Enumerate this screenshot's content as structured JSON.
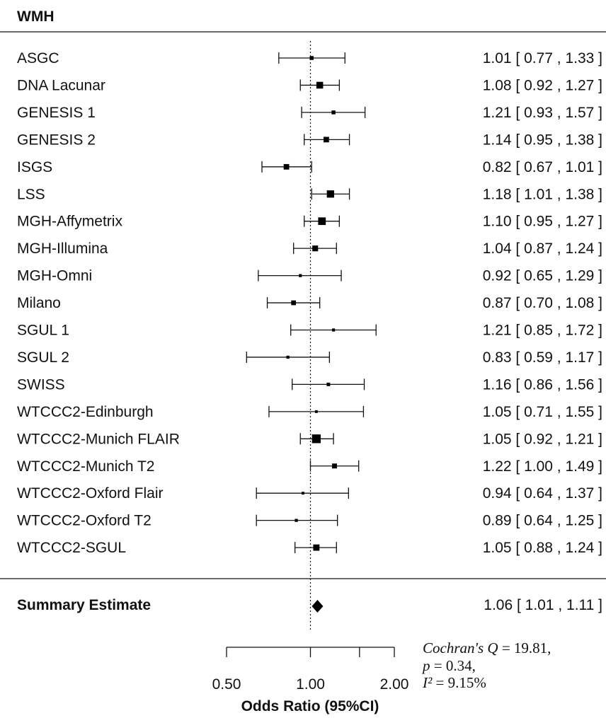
{
  "chart_data": {
    "type": "forest",
    "title": "WMH",
    "xlabel": "Odds Ratio (95%CI)",
    "x_scale": "log",
    "xlim": [
      0.5,
      2.0
    ],
    "xticks": [
      0.5,
      1.0,
      1.5,
      2.0
    ],
    "xtick_labels": [
      "0.50",
      "1.00",
      "",
      "2.00"
    ],
    "reference_line": 1.0,
    "studies": [
      {
        "label": "ASGC",
        "or": 1.01,
        "lower": 0.77,
        "upper": 1.33,
        "ci_text": "1.01 [ 0.77 , 1.33 ]",
        "weight": 1
      },
      {
        "label": "DNA Lacunar",
        "or": 1.08,
        "lower": 0.92,
        "upper": 1.27,
        "ci_text": "1.08 [ 0.92 , 1.27 ]",
        "weight": 3
      },
      {
        "label": "GENESIS 1",
        "or": 1.21,
        "lower": 0.93,
        "upper": 1.57,
        "ci_text": "1.21 [ 0.93 , 1.57 ]",
        "weight": 1
      },
      {
        "label": "GENESIS 2",
        "or": 1.14,
        "lower": 0.95,
        "upper": 1.38,
        "ci_text": "1.14 [ 0.95 , 1.38 ]",
        "weight": 2
      },
      {
        "label": "ISGS",
        "or": 0.82,
        "lower": 0.67,
        "upper": 1.01,
        "ci_text": "0.82 [ 0.67 , 1.01 ]",
        "weight": 2
      },
      {
        "label": "LSS",
        "or": 1.18,
        "lower": 1.01,
        "upper": 1.38,
        "ci_text": "1.18 [ 1.01 , 1.38 ]",
        "weight": 3.5
      },
      {
        "label": "MGH-Affymetrix",
        "or": 1.1,
        "lower": 0.95,
        "upper": 1.27,
        "ci_text": "1.10 [ 0.95 , 1.27 ]",
        "weight": 3.8
      },
      {
        "label": "MGH-Illumina",
        "or": 1.04,
        "lower": 0.87,
        "upper": 1.24,
        "ci_text": "1.04 [ 0.87 , 1.24 ]",
        "weight": 2.2
      },
      {
        "label": "MGH-Omni",
        "or": 0.92,
        "lower": 0.65,
        "upper": 1.29,
        "ci_text": "0.92 [ 0.65 , 1.29 ]",
        "weight": 0.6
      },
      {
        "label": "Milano",
        "or": 0.87,
        "lower": 0.7,
        "upper": 1.08,
        "ci_text": "0.87 [ 0.70 , 1.08 ]",
        "weight": 1.5
      },
      {
        "label": "SGUL 1",
        "or": 1.21,
        "lower": 0.85,
        "upper": 1.72,
        "ci_text": "1.21 [ 0.85 , 1.72 ]",
        "weight": 0.6
      },
      {
        "label": "SGUL 2",
        "or": 0.83,
        "lower": 0.59,
        "upper": 1.17,
        "ci_text": "0.83 [ 0.59 , 1.17 ]",
        "weight": 0.6
      },
      {
        "label": "SWISS",
        "or": 1.16,
        "lower": 0.86,
        "upper": 1.56,
        "ci_text": "1.16 [ 0.86 , 1.56 ]",
        "weight": 0.8
      },
      {
        "label": "WTCCC2-Edinburgh",
        "or": 1.05,
        "lower": 0.71,
        "upper": 1.55,
        "ci_text": "1.05 [ 0.71 , 1.55 ]",
        "weight": 0.5
      },
      {
        "label": "WTCCC2-Munich FLAIR",
        "or": 1.05,
        "lower": 0.92,
        "upper": 1.21,
        "ci_text": "1.05 [ 0.92 , 1.21 ]",
        "weight": 5
      },
      {
        "label": "WTCCC2-Munich T2",
        "or": 1.22,
        "lower": 1.0,
        "upper": 1.49,
        "ci_text": "1.22 [ 1.00 , 1.49 ]",
        "weight": 1.6
      },
      {
        "label": "WTCCC2-Oxford Flair",
        "or": 0.94,
        "lower": 0.64,
        "upper": 1.37,
        "ci_text": "0.94 [ 0.64 , 1.37 ]",
        "weight": 0.5
      },
      {
        "label": "WTCCC2-Oxford T2",
        "or": 0.89,
        "lower": 0.64,
        "upper": 1.25,
        "ci_text": "0.89 [ 0.64 , 1.25 ]",
        "weight": 0.6
      },
      {
        "label": "WTCCC2-SGUL",
        "or": 1.05,
        "lower": 0.88,
        "upper": 1.24,
        "ci_text": "1.05 [ 0.88 , 1.24 ]",
        "weight": 2.6
      }
    ],
    "summary": {
      "label": "Summary Estimate",
      "or": 1.06,
      "lower": 1.01,
      "upper": 1.11,
      "ci_text": "1.06 [ 1.01 , 1.11 ]"
    },
    "heterogeneity": {
      "q_label": "Cochran's Q",
      "q_value": "= 19.81,",
      "p_label": "p",
      "p_value": "= 0.34,",
      "i2_label": "I²",
      "i2_value": "= 9.15%"
    }
  }
}
